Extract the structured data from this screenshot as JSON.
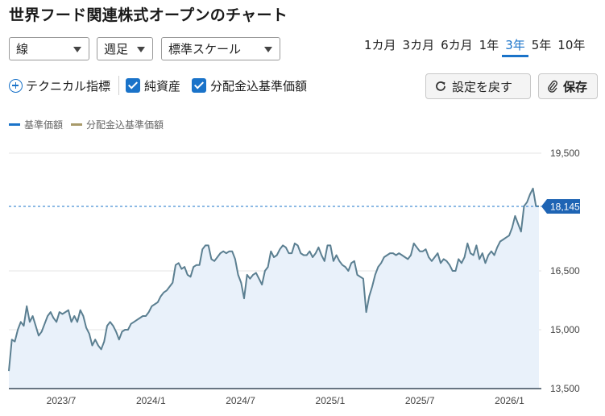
{
  "page": {
    "title": "世界フード関連株式オープンのチャート"
  },
  "controls": {
    "line_type": "線",
    "interval": "週足",
    "scale": "標準スケール",
    "ranges": [
      "1カ月",
      "3カ月",
      "6カ月",
      "1年",
      "3年",
      "5年",
      "10年"
    ],
    "active_range": "3年"
  },
  "options": {
    "technical_label": "テクニカル指標",
    "net_assets_label": "純資産",
    "dividend_label": "分配金込基準価額",
    "reset_button": "設定を戻す",
    "save_button": "保存"
  },
  "legend": {
    "nav": "基準価額",
    "dividend": "分配金込基準価額"
  },
  "colors": {
    "accent": "#1a73c9",
    "series_line": "#5b7f91",
    "area_fill": "#e9f1fa",
    "dividend_legend": "#a89a6a",
    "price_tag": "#1e64b4"
  },
  "chart_data": {
    "type": "area",
    "xlabels": [
      "2023/7",
      "2024/1",
      "2024/7",
      "2025/1",
      "2025/7",
      "2026/1"
    ],
    "ytick_labels": [
      "19,500",
      "16,500",
      "15,000",
      "13,500"
    ],
    "ylim": [
      13500,
      19500
    ],
    "last_price_label": "18,145",
    "grid": true,
    "series": [
      {
        "values": [
          13950,
          14750,
          14700,
          15000,
          15200,
          15100,
          15600,
          15200,
          15350,
          15100,
          14850,
          14950,
          15150,
          15350,
          15450,
          15300,
          15200,
          15450,
          15400,
          15450,
          15500,
          15200,
          15350,
          15200,
          15500,
          15350,
          15050,
          14900,
          14600,
          14750,
          14600,
          14500,
          14700,
          15100,
          15200,
          15100,
          14950,
          14750,
          14950,
          15000,
          15000,
          15150,
          15200,
          15250,
          15300,
          15350,
          15350,
          15450,
          15600,
          15650,
          15700,
          15850,
          15950,
          16000,
          16100,
          16200,
          16650,
          16700,
          16550,
          16600,
          16400,
          16350,
          16600,
          16650,
          16650,
          17050,
          17150,
          17150,
          16800,
          16750,
          16850,
          16950,
          17000,
          16950,
          17000,
          17000,
          16800,
          16400,
          16200,
          15800,
          16400,
          16300,
          16400,
          16450,
          16300,
          16150,
          16500,
          16600,
          17000,
          16850,
          16900,
          17050,
          17150,
          17100,
          16950,
          16950,
          17200,
          17150,
          16950,
          16900,
          16900,
          17000,
          16850,
          16950,
          17100,
          16900,
          16750,
          17150,
          17150,
          16750,
          16900,
          16750,
          16650,
          16600,
          16500,
          16700,
          16750,
          16400,
          16350,
          16300,
          15450,
          15850,
          16100,
          16400,
          16600,
          16700,
          16850,
          16900,
          16950,
          16950,
          16900,
          16950,
          16900,
          16850,
          16800,
          16900,
          17200,
          17100,
          17000,
          17000,
          17050,
          16850,
          16750,
          16850,
          16950,
          16700,
          16800,
          16750,
          16650,
          16500,
          16500,
          16800,
          16700,
          16850,
          17200,
          16950,
          16900,
          17150,
          16800,
          16950,
          16700,
          16900,
          17000,
          16900,
          17100,
          17250,
          17300,
          17350,
          17400,
          17600,
          17900,
          17700,
          17500,
          18150,
          18250,
          18450,
          18600,
          18150,
          18145
        ],
        "last": 18145
      }
    ]
  }
}
